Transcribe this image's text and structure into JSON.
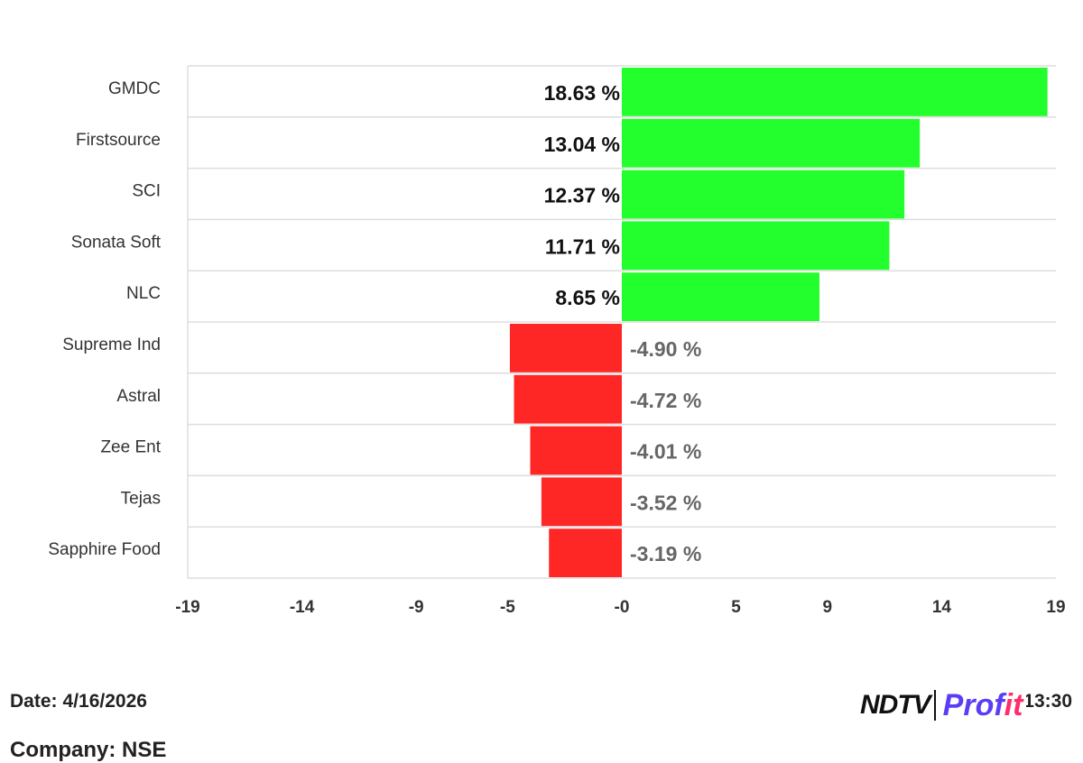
{
  "chart_data": {
    "type": "bar",
    "orientation": "horizontal",
    "categories": [
      "GMDC",
      "Firstsource",
      "SCI",
      "Sonata Soft",
      "NLC",
      "Supreme Ind",
      "Astral",
      "Zee Ent",
      "Tejas",
      "Sapphire Food"
    ],
    "values": [
      18.63,
      13.04,
      12.37,
      11.71,
      8.65,
      -4.9,
      -4.72,
      -4.01,
      -3.52,
      -3.19
    ],
    "value_labels": [
      "18.63 %",
      "13.04 %",
      "12.37 %",
      "11.71 %",
      "8.65 %",
      "-4.90 %",
      "-4.72 %",
      "-4.01 %",
      "-3.52 %",
      "-3.19 %"
    ],
    "xlim": [
      -19,
      19
    ],
    "x_ticks": [
      -19,
      -14,
      -9,
      -5,
      0,
      5,
      9,
      14,
      19
    ],
    "x_tick_labels": [
      "-19",
      "-14",
      "-9",
      "-5",
      "-0",
      "5",
      "9",
      "14",
      "19"
    ],
    "colors": {
      "positive": "#22ff2c",
      "negative": "#ff2626",
      "grid": "#dddddd"
    },
    "grid": true,
    "legend": "none"
  },
  "footer": {
    "date_label": "Date:",
    "date_value": "4/16/2026",
    "exchange_label": "Company: NSE",
    "time_text": "Time: 13:30"
  },
  "brand": {
    "ndtv": "NDTV",
    "profit_main": "Prof",
    "profit_accent": "it"
  }
}
